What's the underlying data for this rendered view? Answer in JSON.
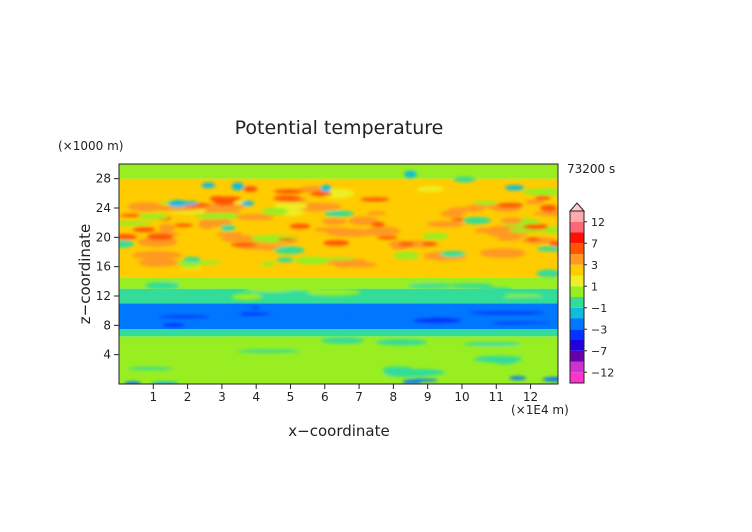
{
  "chart_data": {
    "type": "heatmap",
    "title": "Potential temperature",
    "xlabel": "x−coordinate",
    "ylabel": "z−coordinate",
    "x_unit": "(×1E4 m)",
    "y_unit": "(×1000 m)",
    "time_label": "73200 s",
    "xlim": [
      0,
      12.8
    ],
    "ylim": [
      0,
      30
    ],
    "x_ticks": [
      1,
      2,
      3,
      4,
      5,
      6,
      7,
      8,
      9,
      10,
      11,
      12
    ],
    "y_ticks": [
      4,
      8,
      12,
      16,
      20,
      24,
      28
    ],
    "colorbar": {
      "levels": [
        -12,
        -9,
        -7,
        -5,
        -3,
        -2,
        -1,
        0,
        1,
        2,
        3,
        5,
        7,
        9,
        12
      ],
      "labels": [
        12,
        7,
        3,
        1,
        -1,
        -3,
        -7,
        -12
      ],
      "colors": [
        "#ff33cc",
        "#cc33cc",
        "#6600aa",
        "#2200dd",
        "#0033ff",
        "#0077ff",
        "#11bbdd",
        "#33dd99",
        "#99ee22",
        "#eeee22",
        "#ffcc00",
        "#ff9922",
        "#ff5500",
        "#ff1100",
        "#ff6677",
        "#ffaaaa"
      ]
    },
    "bands": [
      {
        "z": [
          0,
          1.5
        ],
        "level": 0
      },
      {
        "z": [
          1.5,
          6.5
        ],
        "level": 0
      },
      {
        "z": [
          6.5,
          7.5
        ],
        "level": -1
      },
      {
        "z": [
          7.5,
          11
        ],
        "level": -3
      },
      {
        "z": [
          11,
          13
        ],
        "level": -1
      },
      {
        "z": [
          13,
          14.5
        ],
        "level": 0
      },
      {
        "z": [
          14.5,
          28
        ],
        "level": 2
      },
      {
        "z": [
          28,
          30
        ],
        "level": 0
      }
    ]
  }
}
